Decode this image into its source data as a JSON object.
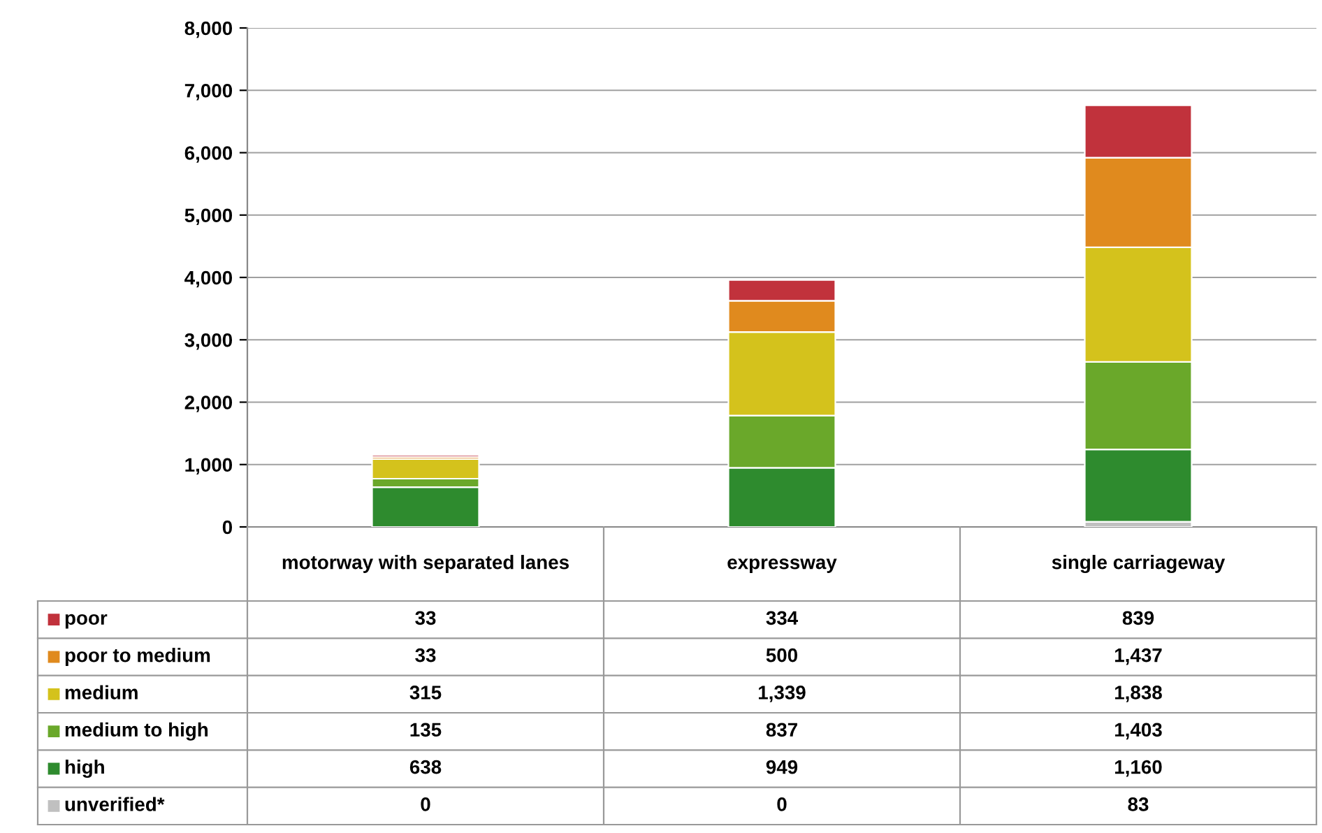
{
  "chart_data": {
    "type": "bar",
    "stacked": true,
    "categories": [
      "motorway with separated lanes",
      "expressway",
      "single carriageway"
    ],
    "series": [
      {
        "name": "unverified*",
        "color": "#c0c0c0",
        "values": [
          0,
          0,
          83
        ],
        "value_labels": [
          "0",
          "0",
          "83"
        ]
      },
      {
        "name": "high",
        "color": "#2e8b2e",
        "values": [
          638,
          949,
          1160
        ],
        "value_labels": [
          "638",
          "949",
          "1,160"
        ]
      },
      {
        "name": "medium to high",
        "color": "#6aa82a",
        "values": [
          135,
          837,
          1403
        ],
        "value_labels": [
          "135",
          "837",
          "1,403"
        ]
      },
      {
        "name": "medium",
        "color": "#d4c21c",
        "values": [
          315,
          1339,
          1838
        ],
        "value_labels": [
          "315",
          "1,339",
          "1,838"
        ]
      },
      {
        "name": "poor to medium",
        "color": "#e08a1e",
        "values": [
          33,
          500,
          1437
        ],
        "value_labels": [
          "33",
          "500",
          "1,437"
        ]
      },
      {
        "name": "poor",
        "color": "#c1323c",
        "values": [
          33,
          334,
          839
        ],
        "value_labels": [
          "33",
          "334",
          "839"
        ]
      }
    ],
    "ylim": [
      0,
      8000
    ],
    "yticks": [
      {
        "value": 0,
        "label": "0"
      },
      {
        "value": 1000,
        "label": "1,000"
      },
      {
        "value": 2000,
        "label": "2,000"
      },
      {
        "value": 3000,
        "label": "3,000"
      },
      {
        "value": 4000,
        "label": "4,000"
      },
      {
        "value": 5000,
        "label": "5,000"
      },
      {
        "value": 6000,
        "label": "6,000"
      },
      {
        "value": 7000,
        "label": "7,000"
      },
      {
        "value": 8000,
        "label": "8,000"
      }
    ],
    "grid": "y",
    "legend": "bottom left"
  }
}
